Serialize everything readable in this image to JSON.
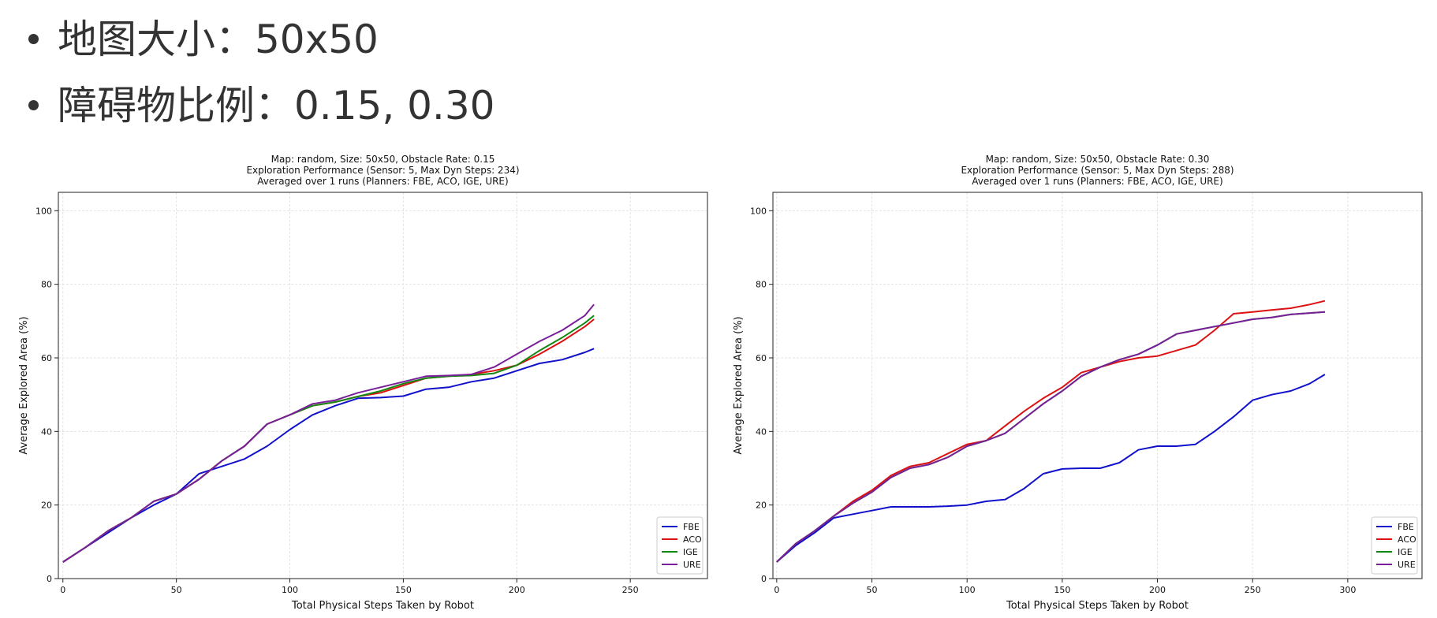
{
  "slide": {
    "bullets": [
      {
        "label": "地图大小：",
        "value": "50x50"
      },
      {
        "label": "障碍物比例：",
        "value": "0.15, 0.30"
      }
    ]
  },
  "chart_data": [
    {
      "type": "line",
      "title": [
        "Map: random, Size: 50x50, Obstacle Rate: 0.15",
        "Exploration Performance (Sensor: 5, Max Dyn Steps: 234)",
        "Averaged over 1 runs (Planners: FBE, ACO, IGE, URE)"
      ],
      "xlabel": "Total Physical Steps Taken by Robot",
      "ylabel": "Average Explored Area (%)",
      "xlim": [
        -2,
        284
      ],
      "ylim": [
        0,
        105
      ],
      "xticks": [
        0,
        50,
        100,
        150,
        200,
        250
      ],
      "yticks": [
        0,
        20,
        40,
        60,
        80,
        100
      ],
      "grid": true,
      "legend": "lower-right",
      "series": [
        {
          "name": "FBE",
          "color": "#1111cc",
          "x": [
            0,
            10,
            20,
            30,
            40,
            50,
            60,
            70,
            80,
            90,
            100,
            110,
            120,
            130,
            140,
            150,
            160,
            170,
            180,
            190,
            200,
            210,
            220,
            230,
            234
          ],
          "y": [
            4.5,
            8.5,
            12.5,
            16.5,
            20,
            23,
            28.5,
            30.5,
            32.5,
            36,
            40.5,
            44.5,
            47,
            49,
            49.2,
            49.6,
            51.5,
            52,
            53.5,
            54.5,
            56.5,
            58.5,
            59.5,
            61.5,
            62.5
          ]
        },
        {
          "name": "ACO",
          "color": "#dd1111",
          "x": [
            0,
            10,
            20,
            30,
            40,
            50,
            60,
            70,
            80,
            90,
            100,
            110,
            120,
            130,
            140,
            150,
            160,
            170,
            180,
            190,
            200,
            210,
            220,
            230,
            234
          ],
          "y": [
            4.5,
            8.5,
            13,
            16.5,
            21,
            23,
            27,
            32,
            36,
            42,
            44.5,
            47,
            48,
            49.5,
            50.5,
            52.5,
            54.5,
            55,
            55.5,
            56.5,
            58,
            61,
            64.5,
            68.5,
            70.5
          ]
        },
        {
          "name": "IGE",
          "color": "#118811",
          "x": [
            0,
            10,
            20,
            30,
            40,
            50,
            60,
            70,
            80,
            90,
            100,
            110,
            120,
            130,
            140,
            150,
            160,
            170,
            180,
            190,
            200,
            210,
            220,
            230,
            234
          ],
          "y": [
            4.5,
            8.5,
            13,
            16.5,
            21,
            23,
            27,
            32,
            36,
            42,
            44.5,
            47,
            48,
            49.5,
            51,
            53,
            54.5,
            55,
            55.2,
            55.8,
            58,
            62,
            65.5,
            69.5,
            71.5
          ]
        },
        {
          "name": "URE",
          "color": "#7a1f9a",
          "x": [
            0,
            10,
            20,
            30,
            40,
            50,
            60,
            70,
            80,
            90,
            100,
            110,
            120,
            130,
            140,
            150,
            160,
            170,
            180,
            190,
            200,
            210,
            220,
            230,
            234
          ],
          "y": [
            4.5,
            8.5,
            13,
            16.5,
            21,
            23,
            27,
            32,
            36,
            42,
            44.5,
            47.5,
            48.5,
            50.5,
            52,
            53.5,
            55,
            55.2,
            55.5,
            57.5,
            61,
            64.5,
            67.5,
            71.5,
            74.5
          ]
        }
      ]
    },
    {
      "type": "line",
      "title": [
        "Map: random, Size: 50x50, Obstacle Rate: 0.30",
        "Exploration Performance (Sensor: 5, Max Dyn Steps: 288)",
        "Averaged over 1 runs (Planners: FBE, ACO, IGE, URE)"
      ],
      "xlabel": "Total Physical Steps Taken by Robot",
      "ylabel": "Average Explored Area (%)",
      "xlim": [
        -2,
        339
      ],
      "ylim": [
        0,
        105
      ],
      "xticks": [
        0,
        50,
        100,
        150,
        200,
        250,
        300
      ],
      "yticks": [
        0,
        20,
        40,
        60,
        80,
        100
      ],
      "grid": true,
      "legend": "lower-right",
      "series": [
        {
          "name": "FBE",
          "color": "#1111cc",
          "x": [
            0,
            10,
            20,
            30,
            40,
            50,
            60,
            70,
            80,
            90,
            100,
            110,
            120,
            130,
            140,
            150,
            160,
            170,
            180,
            190,
            200,
            210,
            220,
            230,
            240,
            250,
            260,
            270,
            280,
            288
          ],
          "y": [
            4.5,
            9,
            12.5,
            16.5,
            17.5,
            18.5,
            19.5,
            19.5,
            19.5,
            19.7,
            20,
            21,
            21.5,
            24.5,
            28.5,
            29.8,
            30,
            30,
            31.5,
            35,
            36,
            36,
            36.5,
            40,
            44,
            48.5,
            50,
            51,
            53,
            55.5
          ]
        },
        {
          "name": "ACO",
          "color": "#dd1111",
          "x": [
            0,
            10,
            20,
            30,
            40,
            50,
            60,
            70,
            80,
            90,
            100,
            110,
            120,
            130,
            140,
            150,
            160,
            170,
            180,
            190,
            200,
            210,
            220,
            230,
            240,
            250,
            260,
            270,
            280,
            288
          ],
          "y": [
            4.5,
            9.5,
            13,
            17,
            21,
            24,
            28,
            30.5,
            31.5,
            34,
            36.5,
            37.5,
            41.5,
            45.5,
            49,
            52,
            56,
            57.5,
            59,
            60,
            60.5,
            62,
            63.5,
            67.5,
            72,
            72.5,
            73,
            73.5,
            74.5,
            75.5
          ]
        },
        {
          "name": "IGE",
          "color": "#118811",
          "x": [
            0,
            10,
            20,
            30,
            40,
            50,
            60,
            70,
            80,
            90,
            100,
            110,
            120,
            130,
            140,
            150,
            160,
            170,
            180,
            190,
            200,
            210,
            220,
            230,
            240,
            250,
            260,
            270,
            280,
            288
          ],
          "y": [
            4.5,
            9.5,
            13,
            17,
            20.5,
            23.5,
            27.5,
            30,
            31,
            33,
            36,
            37.5,
            39.5,
            43.5,
            47.5,
            51,
            55,
            57.5,
            59.5,
            61,
            63.5,
            66.5,
            67.5,
            68.5,
            69.5,
            70.5,
            71,
            71.8,
            72.2,
            72.5
          ]
        },
        {
          "name": "URE",
          "color": "#7a1f9a",
          "x": [
            0,
            10,
            20,
            30,
            40,
            50,
            60,
            70,
            80,
            90,
            100,
            110,
            120,
            130,
            140,
            150,
            160,
            170,
            180,
            190,
            200,
            210,
            220,
            230,
            240,
            250,
            260,
            270,
            280,
            288
          ],
          "y": [
            4.5,
            9.5,
            13,
            17,
            20.5,
            23.5,
            27.5,
            30,
            31,
            33,
            36,
            37.5,
            39.5,
            43.5,
            47.5,
            51,
            55,
            57.5,
            59.5,
            61,
            63.5,
            66.5,
            67.5,
            68.5,
            69.5,
            70.5,
            71,
            71.8,
            72.2,
            72.5
          ]
        }
      ]
    }
  ]
}
